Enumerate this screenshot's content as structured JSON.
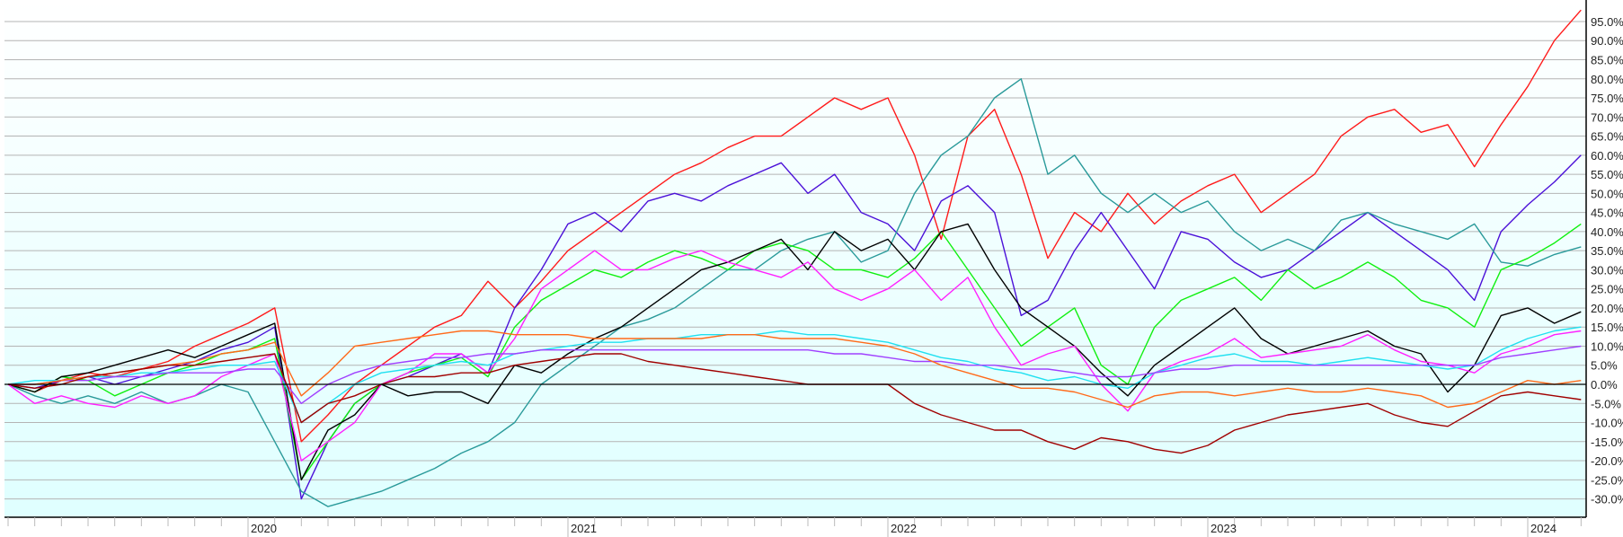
{
  "chart_data": {
    "type": "line",
    "x": [
      "2019-04",
      "2019-05",
      "2019-06",
      "2019-07",
      "2019-08",
      "2019-09",
      "2019-10",
      "2019-11",
      "2019-12",
      "2020-01",
      "2020-02",
      "2020-03",
      "2020-04",
      "2020-05",
      "2020-06",
      "2020-07",
      "2020-08",
      "2020-09",
      "2020-10",
      "2020-11",
      "2020-12",
      "2021-01",
      "2021-02",
      "2021-03",
      "2021-04",
      "2021-05",
      "2021-06",
      "2021-07",
      "2021-08",
      "2021-09",
      "2021-10",
      "2021-11",
      "2021-12",
      "2022-01",
      "2022-02",
      "2022-03",
      "2022-04",
      "2022-05",
      "2022-06",
      "2022-07",
      "2022-08",
      "2022-09",
      "2022-10",
      "2022-11",
      "2022-12",
      "2023-01",
      "2023-02",
      "2023-03",
      "2023-04",
      "2023-05",
      "2023-06",
      "2023-07",
      "2023-08",
      "2023-09",
      "2023-10",
      "2023-11",
      "2023-12",
      "2024-01",
      "2024-02",
      "2024-03"
    ],
    "x_tick_labels": [
      "2020",
      "2021",
      "2022",
      "2023",
      "2024"
    ],
    "y_tick_labels": [
      "95.0%",
      "90.0%",
      "85.0%",
      "80.0%",
      "75.0%",
      "70.0%",
      "65.0%",
      "60.0%",
      "55.0%",
      "50.0%",
      "45.0%",
      "40.0%",
      "35.0%",
      "30.0%",
      "25.0%",
      "20.0%",
      "15.0%",
      "10.0%",
      "5.0%",
      "0.0%",
      "-5.0%",
      "-10.0%",
      "-15.0%",
      "-20.0%",
      "-25.0%",
      "-30.0%"
    ],
    "ylim": [
      -35,
      100
    ],
    "y_unit": "percent",
    "grid": true,
    "y_axis_side": "right",
    "background": [
      "#ffffff",
      "#dfffff"
    ],
    "series": [
      {
        "color": "#ff1a1a",
        "values": [
          0,
          -2,
          1,
          3,
          2,
          4,
          6,
          10,
          13,
          16,
          20,
          -15,
          -8,
          0,
          5,
          10,
          15,
          18,
          27,
          20,
          27,
          35,
          40,
          45,
          50,
          55,
          58,
          62,
          65,
          65,
          70,
          75,
          72,
          75,
          60,
          38,
          65,
          72,
          55,
          33,
          45,
          40,
          50,
          42,
          48,
          52,
          55,
          45,
          50,
          55,
          65,
          70,
          72,
          66,
          68,
          57,
          68,
          78,
          90,
          98
        ]
      },
      {
        "color": "#4b10d8",
        "values": [
          0,
          -1,
          1,
          2,
          0,
          2,
          4,
          6,
          9,
          11,
          15,
          -30,
          -15,
          -5,
          0,
          2,
          5,
          8,
          3,
          20,
          30,
          42,
          45,
          40,
          48,
          50,
          48,
          52,
          55,
          58,
          50,
          55,
          45,
          42,
          35,
          48,
          52,
          45,
          18,
          22,
          35,
          45,
          35,
          25,
          40,
          38,
          32,
          28,
          30,
          35,
          40,
          45,
          40,
          35,
          30,
          22,
          40,
          47,
          53,
          60
        ]
      },
      {
        "color": "#2a9a9a",
        "values": [
          0,
          -3,
          -5,
          -3,
          -5,
          -2,
          -5,
          -3,
          0,
          -2,
          -15,
          -28,
          -32,
          -30,
          -28,
          -25,
          -22,
          -18,
          -15,
          -10,
          0,
          5,
          10,
          15,
          17,
          20,
          25,
          30,
          30,
          35,
          38,
          40,
          32,
          35,
          50,
          60,
          65,
          75,
          80,
          55,
          60,
          50,
          45,
          50,
          45,
          48,
          40,
          35,
          38,
          35,
          43,
          45,
          42,
          40,
          38,
          42,
          32,
          31,
          34,
          36
        ]
      },
      {
        "color": "#10f010",
        "values": [
          0,
          -2,
          2,
          1,
          -3,
          0,
          3,
          5,
          8,
          9,
          12,
          -25,
          -15,
          -5,
          0,
          3,
          5,
          7,
          2,
          15,
          22,
          26,
          30,
          28,
          32,
          35,
          33,
          30,
          35,
          37,
          35,
          30,
          30,
          28,
          33,
          40,
          30,
          20,
          10,
          15,
          20,
          5,
          0,
          15,
          22,
          25,
          28,
          22,
          30,
          25,
          28,
          32,
          28,
          22,
          20,
          15,
          30,
          33,
          37,
          42
        ]
      },
      {
        "color": "#000000",
        "values": [
          0,
          -2,
          2,
          3,
          5,
          7,
          9,
          7,
          10,
          13,
          16,
          -25,
          -12,
          -8,
          0,
          -3,
          -2,
          -2,
          -5,
          5,
          3,
          8,
          12,
          15,
          20,
          25,
          30,
          32,
          35,
          38,
          30,
          40,
          35,
          38,
          30,
          40,
          42,
          30,
          20,
          15,
          10,
          3,
          -3,
          5,
          10,
          15,
          20,
          12,
          8,
          10,
          12,
          14,
          10,
          8,
          -2,
          5,
          18,
          20,
          16,
          19
        ]
      },
      {
        "color": "#ff20ff",
        "values": [
          0,
          -5,
          -3,
          -5,
          -6,
          -3,
          -5,
          -3,
          2,
          5,
          8,
          -20,
          -15,
          -10,
          0,
          3,
          8,
          8,
          3,
          12,
          25,
          30,
          35,
          30,
          30,
          33,
          35,
          32,
          30,
          28,
          32,
          25,
          22,
          25,
          30,
          22,
          28,
          15,
          5,
          8,
          10,
          0,
          -7,
          3,
          6,
          8,
          12,
          7,
          8,
          9,
          10,
          13,
          9,
          6,
          5,
          3,
          8,
          10,
          13,
          14
        ]
      },
      {
        "color": "#20e0f0",
        "values": [
          0,
          1,
          1,
          2,
          2,
          3,
          3,
          4,
          5,
          5,
          6,
          -10,
          -5,
          0,
          3,
          4,
          5,
          6,
          5,
          8,
          9,
          10,
          11,
          11,
          12,
          12,
          13,
          13,
          13,
          14,
          13,
          13,
          12,
          11,
          9,
          7,
          6,
          4,
          3,
          1,
          2,
          0,
          -1,
          3,
          5,
          7,
          8,
          6,
          6,
          5,
          6,
          7,
          6,
          5,
          4,
          5,
          9,
          12,
          14,
          15
        ]
      },
      {
        "color": "#a040ff",
        "values": [
          0,
          0,
          1,
          1,
          2,
          2,
          3,
          3,
          3,
          4,
          4,
          -5,
          0,
          3,
          5,
          6,
          7,
          7,
          8,
          8,
          9,
          9,
          9,
          9,
          9,
          9,
          9,
          9,
          9,
          9,
          9,
          8,
          8,
          7,
          6,
          6,
          5,
          5,
          4,
          4,
          3,
          2,
          2,
          3,
          4,
          4,
          5,
          5,
          5,
          5,
          5,
          5,
          5,
          5,
          5,
          5,
          7,
          8,
          9,
          10
        ]
      },
      {
        "color": "#ff6a1a",
        "values": [
          0,
          0,
          1,
          2,
          3,
          4,
          5,
          6,
          8,
          9,
          11,
          -3,
          3,
          10,
          11,
          12,
          13,
          14,
          14,
          13,
          13,
          13,
          12,
          12,
          12,
          12,
          12,
          13,
          13,
          12,
          12,
          12,
          11,
          10,
          8,
          5,
          3,
          1,
          -1,
          -1,
          -2,
          -4,
          -6,
          -3,
          -2,
          -2,
          -3,
          -2,
          -1,
          -2,
          -2,
          -1,
          -2,
          -3,
          -6,
          -5,
          -2,
          1,
          0,
          1
        ]
      },
      {
        "color": "#a00000",
        "values": [
          0,
          -1,
          0,
          2,
          3,
          4,
          5,
          5,
          6,
          7,
          8,
          -10,
          -5,
          -3,
          0,
          2,
          2,
          3,
          3,
          5,
          6,
          7,
          8,
          8,
          6,
          5,
          4,
          3,
          2,
          1,
          0,
          0,
          0,
          0,
          -5,
          -8,
          -10,
          -12,
          -12,
          -15,
          -17,
          -14,
          -15,
          -17,
          -18,
          -16,
          -12,
          -10,
          -8,
          -7,
          -6,
          -5,
          -8,
          -10,
          -11,
          -7,
          -3,
          -2,
          -3,
          -4
        ]
      }
    ]
  }
}
